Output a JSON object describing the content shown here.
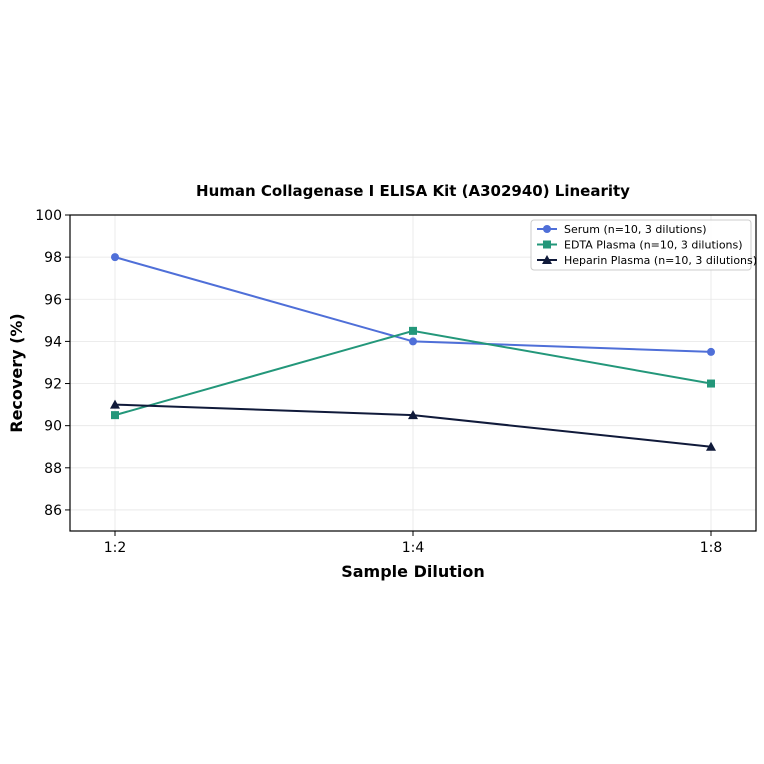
{
  "chart_data": {
    "type": "line",
    "title": "Human Collagenase I ELISA Kit (A302940) Linearity",
    "xlabel": "Sample Dilution",
    "ylabel": "Recovery (%)",
    "categories": [
      "1:2",
      "1:4",
      "1:8"
    ],
    "ylim": [
      85,
      100
    ],
    "yticks": [
      86,
      88,
      90,
      92,
      94,
      96,
      98,
      100
    ],
    "grid": true,
    "legend_position": "top-right",
    "series": [
      {
        "name": "Serum (n=10, 3 dilutions)",
        "values": [
          98.0,
          94.0,
          93.5
        ],
        "color": "#4f6fd8",
        "marker": "circle"
      },
      {
        "name": "EDTA Plasma (n=10, 3 dilutions)",
        "values": [
          90.5,
          94.5,
          92.0
        ],
        "color": "#23977a",
        "marker": "square"
      },
      {
        "name": "Heparin Plasma (n=10, 3 dilutions)",
        "values": [
          91.0,
          90.5,
          89.0
        ],
        "color": "#101a3a",
        "marker": "triangle"
      }
    ]
  }
}
